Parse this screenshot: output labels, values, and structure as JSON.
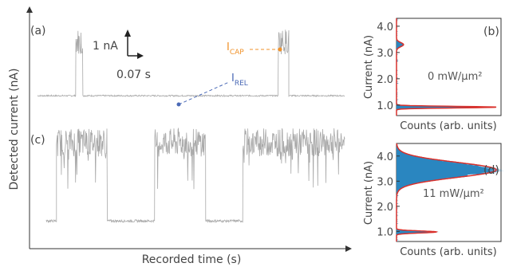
{
  "figure": {
    "left_ylabel": "Detected current (nA)",
    "left_xlabel": "Recorded time (s)",
    "panel_a": "(a)",
    "panel_b": "(b)",
    "panel_c": "(c)",
    "panel_d": "(d)",
    "scale_current": "1 nA",
    "scale_time": "0.07 s",
    "i_cap_main": "I",
    "i_cap_sub": "CAP",
    "i_rel_main": "I",
    "i_rel_sub": "REL"
  },
  "colors": {
    "trace": "#a9a9a9",
    "hist_fill": "#2a86c0",
    "fit_line": "#d9302b",
    "cap_accent": "#f0922a",
    "rel_accent": "#4a69b6",
    "axis": "#333333"
  },
  "chart_data": [
    {
      "type": "line",
      "panel": "(a)",
      "description_units": "time in s, current in nA (relative)",
      "levels_nA": {
        "released": 0.9,
        "captured": 3.2
      },
      "segments": [
        {
          "t_start": 0.0,
          "t_end": 0.055,
          "state": "released"
        },
        {
          "t_start": 0.055,
          "t_end": 0.065,
          "state": "captured"
        },
        {
          "t_start": 0.065,
          "t_end": 0.345,
          "state": "released"
        },
        {
          "t_start": 0.345,
          "t_end": 0.36,
          "state": "captured"
        },
        {
          "t_start": 0.36,
          "t_end": 0.44,
          "state": "released"
        }
      ],
      "scale_bar": {
        "current_nA": 1,
        "time_s": 0.07
      }
    },
    {
      "type": "line",
      "panel": "(c)",
      "levels_nA": {
        "released": 0.9,
        "captured": 3.4
      },
      "segments": [
        {
          "t_start": 0.0,
          "t_end": 0.015,
          "state": "released"
        },
        {
          "t_start": 0.015,
          "t_end": 0.09,
          "state": "captured"
        },
        {
          "t_start": 0.09,
          "t_end": 0.16,
          "state": "released"
        },
        {
          "t_start": 0.16,
          "t_end": 0.235,
          "state": "captured"
        },
        {
          "t_start": 0.235,
          "t_end": 0.29,
          "state": "released"
        },
        {
          "t_start": 0.29,
          "t_end": 0.44,
          "state": "captured"
        }
      ]
    },
    {
      "type": "area",
      "panel": "(b)",
      "orientation": "horizontal",
      "ylabel": "Current (nA)",
      "xlabel": "Counts (arb. units)",
      "ylim": [
        0.6,
        4.3
      ],
      "yticks": [
        1.0,
        2.0,
        3.0,
        4.0
      ],
      "annotation": "0 mW/μm²",
      "peaks": [
        {
          "center_nA": 0.92,
          "sigma_nA": 0.03,
          "relative_height": 1.0
        },
        {
          "center_nA": 3.3,
          "sigma_nA": 0.08,
          "relative_height": 0.07
        }
      ]
    },
    {
      "type": "area",
      "panel": "(d)",
      "orientation": "horizontal",
      "ylabel": "Current (nA)",
      "xlabel": "Counts (arb. units)",
      "ylim": [
        0.6,
        4.5
      ],
      "yticks": [
        1.0,
        2.0,
        3.0,
        4.0
      ],
      "annotation": "11 mW/μm²",
      "peaks": [
        {
          "center_nA": 3.45,
          "sigma_nA": 0.3,
          "relative_height": 1.0
        },
        {
          "center_nA": 0.98,
          "sigma_nA": 0.04,
          "relative_height": 0.4
        }
      ]
    }
  ]
}
